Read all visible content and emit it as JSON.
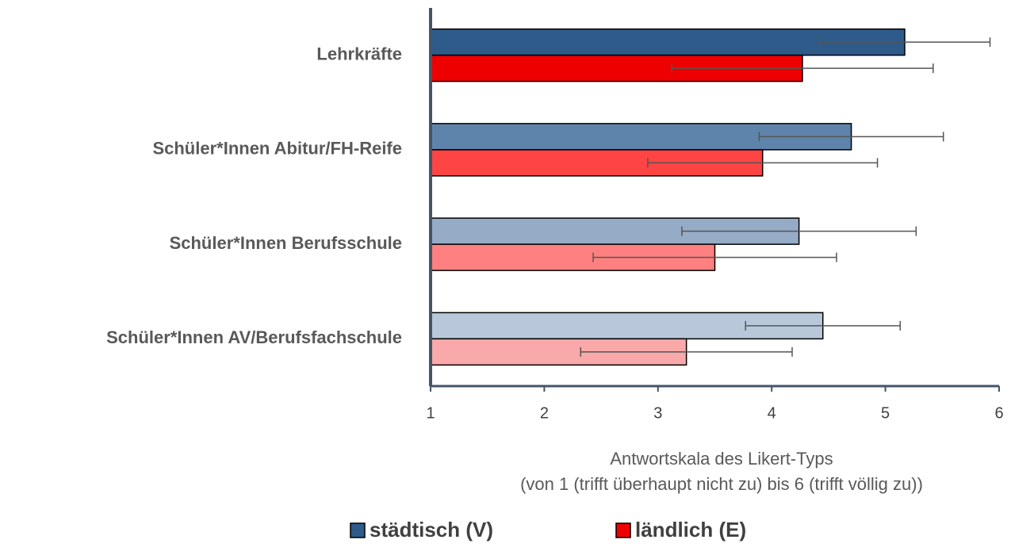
{
  "chart_data": {
    "type": "hbar",
    "categories": [
      "Lehrkräfte",
      "Schüler*Innen Abitur/FH-Reife",
      "Schüler*Innen Berufsschule",
      "Schüler*Innen AV/Berufsfachschule"
    ],
    "series": [
      {
        "name": "städtisch (V)",
        "color": "#2e5b8a",
        "colors": [
          "#2e5b8a",
          "#5f84ab",
          "#95abc6",
          "#b8c8da"
        ],
        "values": [
          5.17,
          4.7,
          4.24,
          4.45
        ],
        "errors": [
          0.75,
          0.81,
          1.03,
          0.68
        ]
      },
      {
        "name": "ländlich (E)",
        "color": "#ee0000",
        "colors": [
          "#ee0000",
          "#ff4444",
          "#ff8080",
          "#f9a9a9"
        ],
        "values": [
          4.27,
          3.92,
          3.5,
          3.25
        ],
        "errors": [
          1.15,
          1.01,
          1.07,
          0.93
        ]
      }
    ],
    "xlim": [
      1,
      6
    ],
    "xticks": [
      1,
      2,
      3,
      4,
      5,
      6
    ],
    "xlabel": [
      "Antwortskala des Likert-Typs",
      "(von 1 (trifft überhaupt nicht zu) bis 6 (trifft völlig zu))"
    ]
  }
}
